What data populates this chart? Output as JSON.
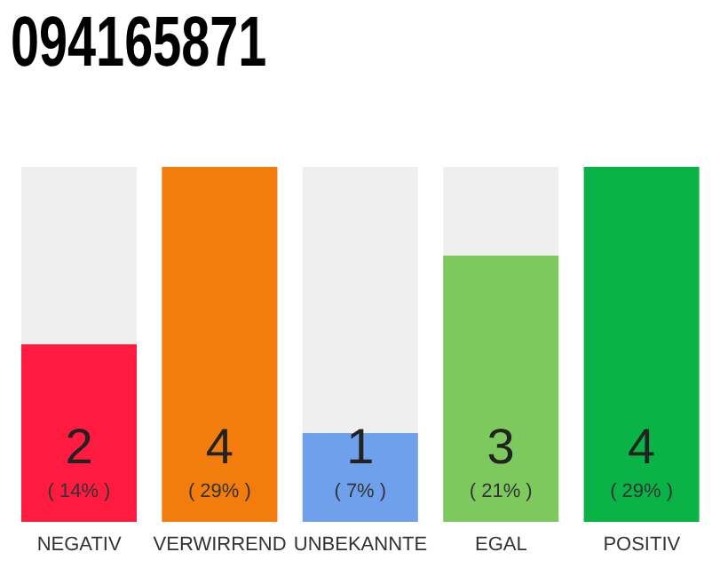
{
  "chart_data": {
    "type": "bar",
    "title": "094165871",
    "categories": [
      "NEGATIV",
      "VERWIRREND",
      "UNBEKANNTE",
      "EGAL",
      "POSITIV"
    ],
    "values": [
      2,
      4,
      1,
      3,
      4
    ],
    "colors": [
      "#ff1a40",
      "#f27c0c",
      "#6fa0ec",
      "#7dc95e",
      "#0ab345"
    ],
    "tick_labels": "x",
    "data_labels": true,
    "annotations": [
      "( 14% )",
      "( 29% )",
      "( 7% )",
      "( 21% )",
      "( 29% )"
    ]
  }
}
